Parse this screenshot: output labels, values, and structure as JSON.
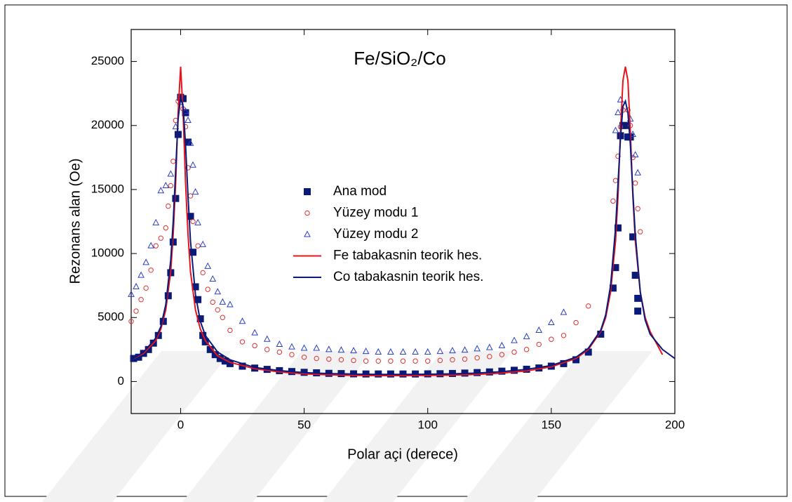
{
  "chart_data": {
    "type": "scatter",
    "title": "Fe/SiO₂/Co",
    "x_label": "Polar açi (derece)",
    "y_label": "Rezonans alan (Oe)",
    "xlim": [
      -20,
      200
    ],
    "ylim": [
      -2500,
      27500
    ],
    "xticks": [
      0,
      50,
      100,
      150,
      200
    ],
    "yticks": [
      0,
      5000,
      10000,
      15000,
      20000,
      25000
    ],
    "series": [
      {
        "name": "Ana mod",
        "color": "#0a1a78",
        "style": "square",
        "x": [
          -19,
          -17,
          -15,
          -13,
          -11,
          -9,
          -7,
          -5,
          -4,
          -3,
          -2,
          -1,
          0,
          1,
          2,
          3,
          4,
          5,
          6,
          7,
          8,
          9,
          10,
          12,
          14,
          16,
          18,
          20,
          25,
          30,
          35,
          40,
          45,
          50,
          55,
          60,
          65,
          70,
          75,
          80,
          85,
          90,
          95,
          100,
          105,
          110,
          115,
          120,
          125,
          130,
          135,
          140,
          145,
          150,
          155,
          160,
          165,
          170,
          175,
          176,
          177,
          178,
          179,
          180,
          181,
          182,
          183,
          184,
          185
        ],
        "values": [
          1800,
          1900,
          2200,
          2500,
          3000,
          3600,
          4700,
          6700,
          8500,
          10900,
          14300,
          19300,
          22200,
          22100,
          21000,
          18700,
          12900,
          10100,
          7400,
          6400,
          4900,
          3600,
          3100,
          2500,
          2100,
          1800,
          1600,
          1400,
          1200,
          1050,
          950,
          850,
          780,
          720,
          680,
          640,
          620,
          600,
          590,
          590,
          590,
          590,
          590,
          600,
          610,
          630,
          660,
          700,
          750,
          810,
          880,
          960,
          1060,
          1200,
          1400,
          1700,
          2300,
          3700,
          7300,
          8900,
          12000,
          19200,
          20000,
          20000,
          19100,
          19100,
          11300,
          8300,
          6500
        ],
        "x2": [
          185
        ],
        "y2": [
          5500
        ]
      },
      {
        "name": "Yüzey modu 1",
        "color": "#e03030",
        "style": "circle",
        "x": [
          -20,
          -18,
          -16,
          -14,
          -12,
          -10,
          -8,
          -6,
          -5,
          -4,
          -3,
          -2,
          -1,
          0,
          1,
          2,
          3,
          4,
          5,
          7,
          9,
          11,
          13,
          15,
          17,
          20,
          25,
          30,
          35,
          40,
          45,
          50,
          55,
          60,
          65,
          70,
          75,
          80,
          85,
          90,
          95,
          100,
          105,
          110,
          115,
          120,
          125,
          130,
          135,
          140,
          145,
          150,
          155,
          160,
          165,
          175,
          176,
          177,
          178,
          179,
          181,
          182,
          183,
          184,
          185,
          186
        ],
        "values": [
          4700,
          5500,
          6400,
          7300,
          8700,
          10600,
          11200,
          12000,
          13700,
          15300,
          17200,
          20400,
          21900,
          22300,
          21300,
          19900,
          16700,
          14500,
          12500,
          10600,
          8500,
          7200,
          6200,
          5600,
          5000,
          4000,
          3100,
          2800,
          2500,
          2300,
          2100,
          1900,
          1800,
          1750,
          1700,
          1650,
          1600,
          1600,
          1600,
          1600,
          1600,
          1600,
          1650,
          1700,
          1750,
          1850,
          1950,
          2100,
          2300,
          2500,
          2900,
          3300,
          3600,
          4600,
          5900,
          14100,
          15700,
          17600,
          19900,
          21200,
          21200,
          20000,
          17500,
          15500,
          13500,
          11700
        ]
      },
      {
        "name": "Yüzey modu 2",
        "color": "#2a3ec8",
        "style": "triangle",
        "x": [
          -20,
          -18,
          -16,
          -14,
          -12,
          -10,
          -8,
          -6,
          -4,
          -2,
          0,
          2,
          3,
          4,
          5,
          6,
          7,
          9,
          11,
          13,
          15,
          17,
          20,
          25,
          30,
          35,
          40,
          45,
          50,
          55,
          60,
          65,
          70,
          75,
          80,
          85,
          90,
          95,
          100,
          105,
          110,
          115,
          120,
          125,
          130,
          135,
          140,
          145,
          150,
          155,
          176,
          177,
          178,
          182,
          183,
          184,
          185
        ],
        "values": [
          6800,
          7400,
          8300,
          9300,
          10600,
          12400,
          14900,
          15300,
          16200,
          19900,
          21800,
          21100,
          20400,
          18600,
          16900,
          14800,
          12400,
          10700,
          9000,
          8000,
          7000,
          6200,
          6000,
          4700,
          3800,
          3300,
          2900,
          2700,
          2600,
          2600,
          2500,
          2450,
          2400,
          2350,
          2300,
          2300,
          2300,
          2300,
          2300,
          2350,
          2400,
          2450,
          2550,
          2650,
          2800,
          3200,
          3500,
          4000,
          4600,
          5400,
          19600,
          21000,
          22000,
          20500,
          19300,
          17700,
          16300
        ]
      },
      {
        "name": "Fe tabakasnin teorik hes.",
        "color": "#e8141c",
        "style": "line",
        "x": [
          -20,
          -15,
          -10,
          -8,
          -6,
          -4,
          -3,
          -2,
          -1,
          0,
          1,
          2,
          3,
          4,
          6,
          8,
          10,
          15,
          20,
          30,
          40,
          50,
          60,
          70,
          80,
          90,
          100,
          110,
          120,
          130,
          140,
          150,
          160,
          165,
          170,
          172,
          174,
          176,
          177,
          178,
          179,
          180,
          181,
          182,
          183,
          184,
          186,
          188,
          190,
          195
        ],
        "values": [
          1700,
          2200,
          3200,
          4100,
          5600,
          8600,
          11500,
          15500,
          21000,
          24600,
          21000,
          15500,
          11500,
          8600,
          5600,
          4100,
          3200,
          2000,
          1500,
          1000,
          750,
          600,
          520,
          480,
          460,
          460,
          470,
          500,
          560,
          660,
          830,
          1150,
          1800,
          2500,
          3900,
          5000,
          7000,
          11000,
          14500,
          19500,
          23500,
          24600,
          23500,
          19500,
          14500,
          11000,
          7000,
          5000,
          3900,
          2100
        ]
      },
      {
        "name": "Co tabakasnin teorik hes.",
        "color": "#0a1a78",
        "style": "line",
        "x": [
          -20,
          -15,
          -10,
          -8,
          -6,
          -4,
          -3,
          -2,
          -1,
          0,
          1,
          2,
          3,
          4,
          6,
          8,
          10,
          15,
          20,
          30,
          40,
          50,
          60,
          70,
          80,
          90,
          100,
          110,
          120,
          130,
          140,
          150,
          160,
          165,
          170,
          172,
          174,
          176,
          177,
          178,
          179,
          180,
          181,
          182,
          183,
          184,
          186,
          188,
          190,
          195,
          200
        ],
        "values": [
          1700,
          2300,
          3400,
          4300,
          6000,
          9500,
          12500,
          16500,
          20500,
          22200,
          21500,
          18500,
          14500,
          11000,
          6800,
          4700,
          3600,
          2300,
          1700,
          1100,
          850,
          700,
          620,
          580,
          560,
          560,
          570,
          600,
          660,
          770,
          950,
          1250,
          1900,
          2600,
          4000,
          5200,
          7500,
          12000,
          15500,
          19000,
          21500,
          21900,
          21000,
          18500,
          14800,
          11500,
          7000,
          4800,
          3700,
          2500,
          1800
        ]
      }
    ]
  }
}
